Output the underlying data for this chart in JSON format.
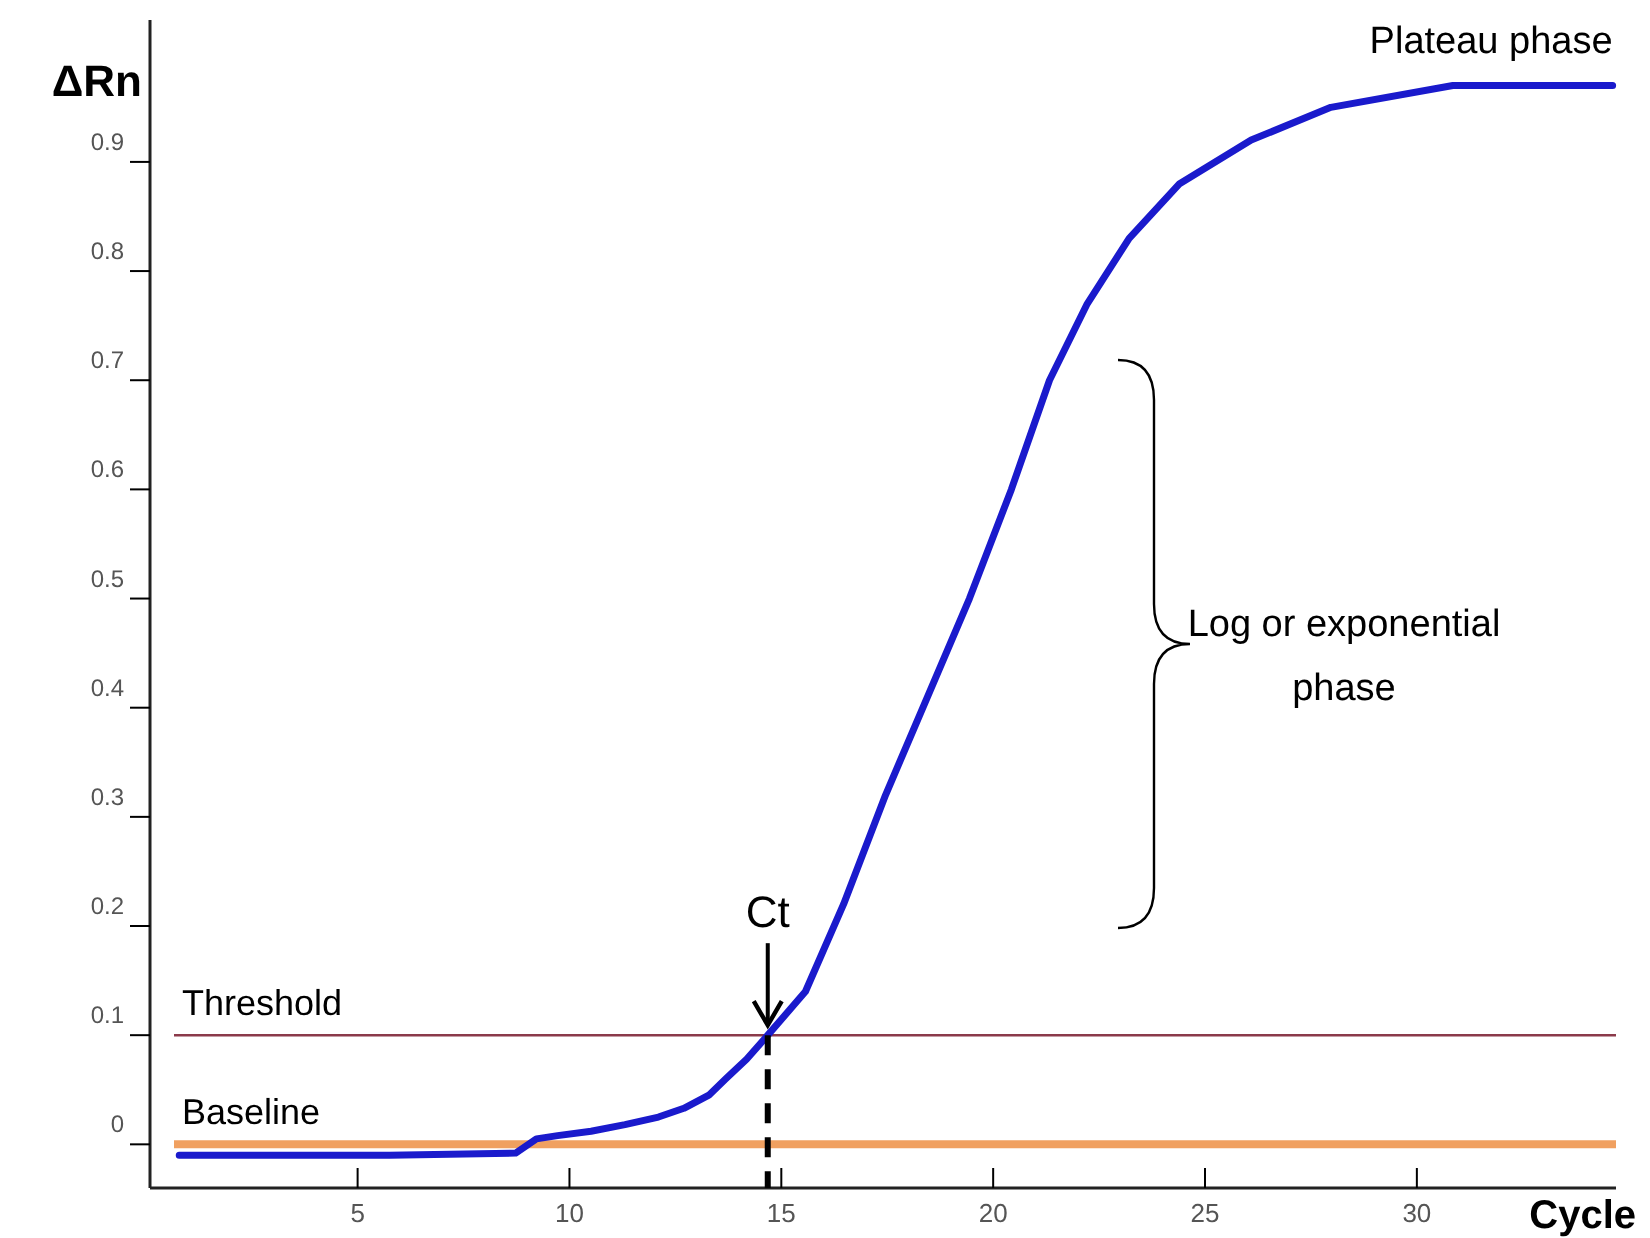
{
  "chart_data": {
    "type": "line",
    "ylabel": "ΔRn",
    "xlabel": "Cycle",
    "x": [
      0.79,
      2.78,
      5.75,
      8.73,
      9.22,
      9.72,
      10.51,
      11.31,
      12.1,
      12.7,
      13.29,
      13.69,
      14.18,
      14.68,
      15.57,
      16.47,
      17.46,
      18.45,
      19.44,
      20.43,
      21.33,
      22.22,
      23.21,
      24.4,
      26.09,
      27.97,
      30.85,
      34.62
    ],
    "series": [
      {
        "color": "#1a1acc",
        "values": [
          -0.01,
          -0.01,
          -0.01,
          -0.008,
          0.005,
          0.008,
          0.012,
          0.018,
          0.025,
          0.033,
          0.045,
          0.06,
          0.078,
          0.1,
          0.14,
          0.22,
          0.32,
          0.41,
          0.5,
          0.6,
          0.7,
          0.77,
          0.83,
          0.88,
          0.92,
          0.95,
          0.97,
          0.97
        ]
      }
    ],
    "xlim": [
      0.1,
      34.7
    ],
    "ylim": [
      -0.04,
      1.03
    ],
    "xticks": [
      5,
      10,
      15,
      20,
      25,
      30
    ],
    "yticks": [
      0,
      0.1,
      0.2,
      0.3,
      0.4,
      0.5,
      0.6,
      0.7,
      0.8,
      0.9
    ],
    "ref_lines": [
      {
        "axis": "y",
        "value": 0.1,
        "label": "Threshold",
        "color": "#8b3a4a"
      },
      {
        "axis": "y",
        "value": 0,
        "label": "Baseline",
        "color": "#f0a060"
      }
    ],
    "annotations": [
      {
        "text": "Ct",
        "x": 14.68,
        "y": 0.1
      },
      "Log or exponential phase",
      {
        "text": "Plateau phase",
        "x": 34.62,
        "y": 0.97
      }
    ],
    "grid": false,
    "marker": "none",
    "line_style": "solid"
  }
}
